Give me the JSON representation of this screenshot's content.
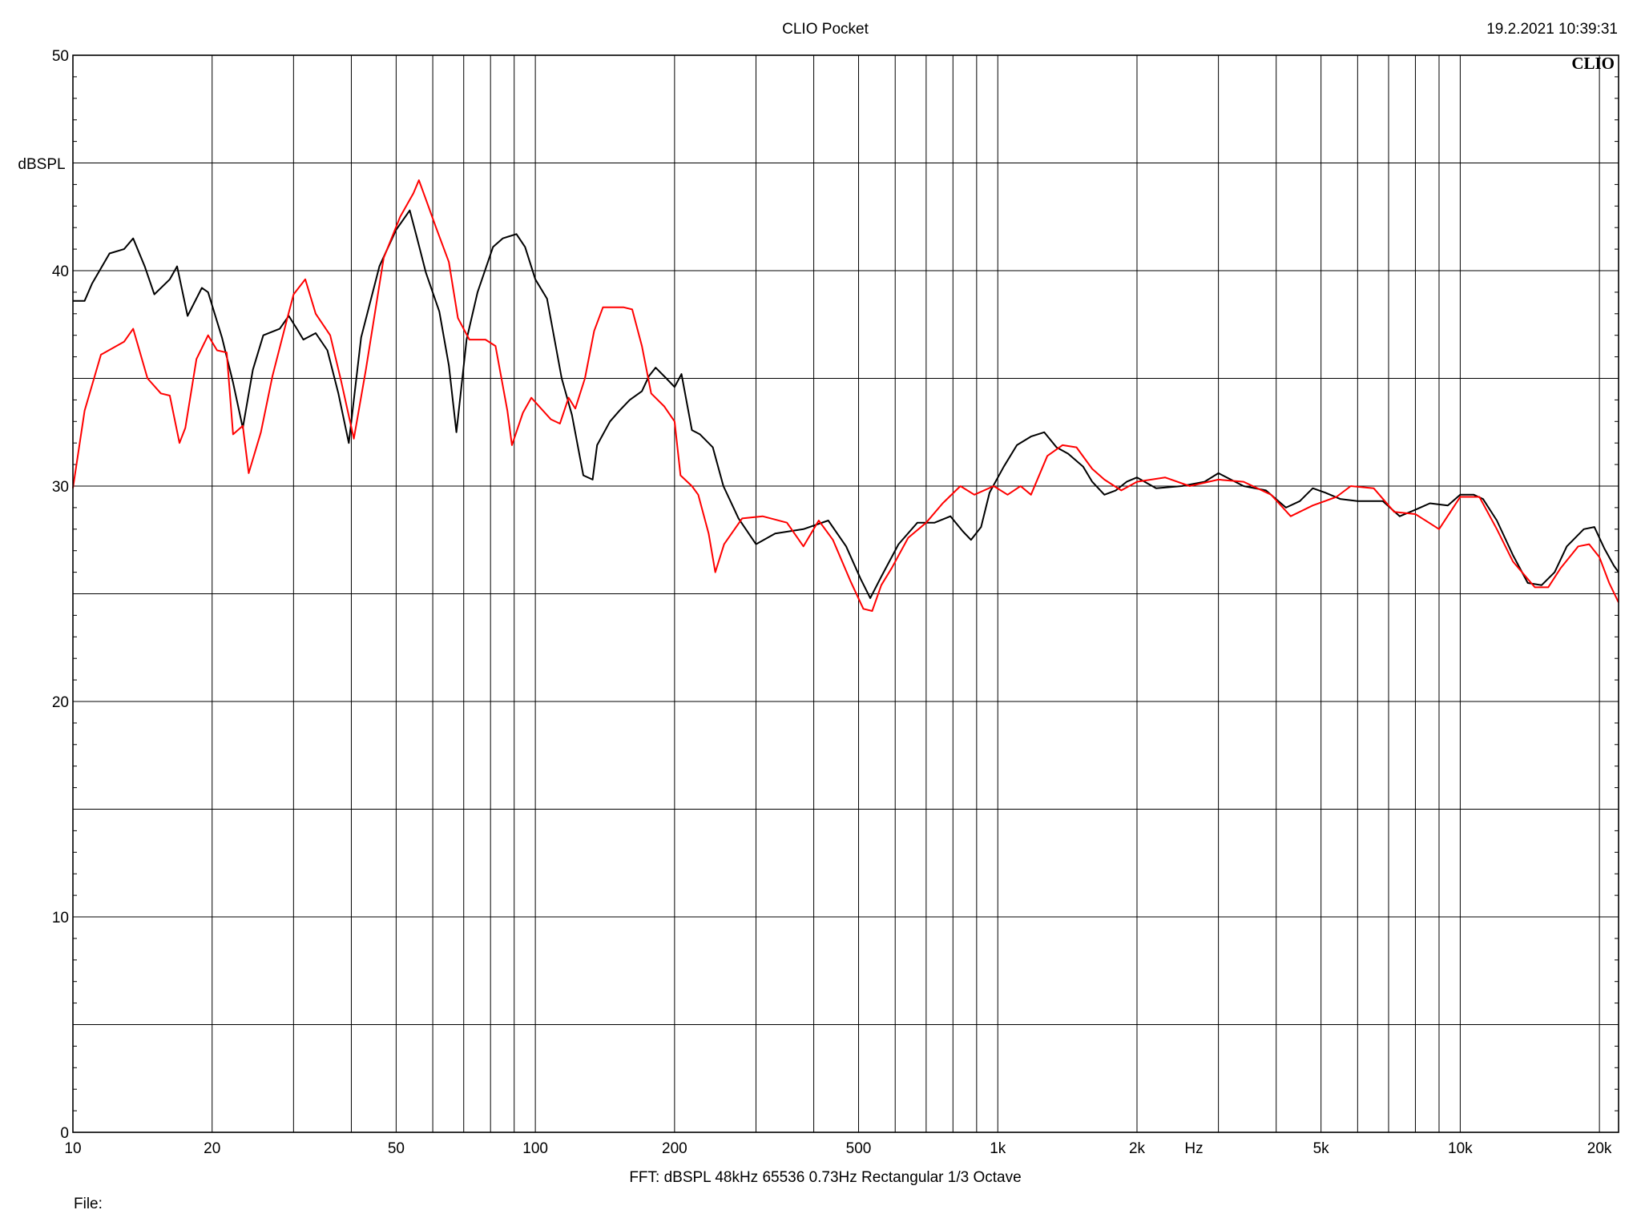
{
  "header": {
    "title": "CLIO Pocket",
    "timestamp": "19.2.2021 10:39:31",
    "logo": "CLIO"
  },
  "footer": {
    "settings": "FFT:  dBSPL  48kHz   65536  0.73Hz  Rectangular  1/3 Octave",
    "file_label": "File:"
  },
  "chart_data": {
    "type": "line",
    "title": "CLIO Pocket",
    "ylabel": "dBSPL",
    "xlabel": "Hz",
    "x_scale": "log",
    "xlim": [
      10,
      22000
    ],
    "ylim": [
      0,
      50
    ],
    "grid": true,
    "y_ticks": [
      {
        "value": 0,
        "label": "0"
      },
      {
        "value": 10,
        "label": "10"
      },
      {
        "value": 20,
        "label": "20"
      },
      {
        "value": 30,
        "label": "30"
      },
      {
        "value": 40,
        "label": "40"
      },
      {
        "value": 50,
        "label": "50"
      }
    ],
    "x_ticks": [
      {
        "value": 10,
        "label": "10"
      },
      {
        "value": 20,
        "label": "20"
      },
      {
        "value": 50,
        "label": "50"
      },
      {
        "value": 100,
        "label": "100"
      },
      {
        "value": 200,
        "label": "200"
      },
      {
        "value": 500,
        "label": "500"
      },
      {
        "value": 1000,
        "label": "1k"
      },
      {
        "value": 2000,
        "label": "2k"
      },
      {
        "value": 5000,
        "label": "5k"
      },
      {
        "value": 10000,
        "label": "10k"
      },
      {
        "value": 20000,
        "label": "20k"
      }
    ],
    "series": [
      {
        "color": "#000000",
        "points": [
          [
            10,
            38.6
          ],
          [
            10.6,
            38.6
          ],
          [
            11,
            39.4
          ],
          [
            12,
            40.8
          ],
          [
            12.9,
            41.0
          ],
          [
            13.5,
            41.5
          ],
          [
            14.3,
            40.2
          ],
          [
            15,
            38.9
          ],
          [
            16.2,
            39.6
          ],
          [
            16.8,
            40.2
          ],
          [
            17.7,
            37.9
          ],
          [
            19,
            39.2
          ],
          [
            19.6,
            39.0
          ],
          [
            21,
            36.9
          ],
          [
            22.2,
            34.8
          ],
          [
            23.3,
            32.7
          ],
          [
            24.5,
            35.4
          ],
          [
            25.8,
            37.0
          ],
          [
            28,
            37.3
          ],
          [
            29.3,
            37.9
          ],
          [
            30.5,
            37.3
          ],
          [
            31.5,
            36.8
          ],
          [
            33.5,
            37.1
          ],
          [
            35.5,
            36.3
          ],
          [
            37.5,
            34.3
          ],
          [
            39.5,
            32.0
          ],
          [
            42,
            36.9
          ],
          [
            46,
            40.2
          ],
          [
            50,
            41.9
          ],
          [
            53.5,
            42.8
          ],
          [
            55.5,
            41.5
          ],
          [
            58,
            39.9
          ],
          [
            62,
            38.1
          ],
          [
            65,
            35.6
          ],
          [
            67.5,
            32.5
          ],
          [
            71,
            36.8
          ],
          [
            75,
            39.0
          ],
          [
            81,
            41.1
          ],
          [
            85,
            41.5
          ],
          [
            91,
            41.7
          ],
          [
            95,
            41.1
          ],
          [
            100,
            39.6
          ],
          [
            106,
            38.7
          ],
          [
            114,
            35.0
          ],
          [
            120,
            33.3
          ],
          [
            127,
            30.5
          ],
          [
            133,
            30.3
          ],
          [
            136,
            31.9
          ],
          [
            145,
            33.0
          ],
          [
            152,
            33.5
          ],
          [
            160,
            34.0
          ],
          [
            170,
            34.4
          ],
          [
            176,
            35.1
          ],
          [
            182,
            35.5
          ],
          [
            192,
            35.0
          ],
          [
            200,
            34.6
          ],
          [
            207,
            35.2
          ],
          [
            218,
            32.6
          ],
          [
            227,
            32.4
          ],
          [
            242,
            31.8
          ],
          [
            255,
            30.0
          ],
          [
            275,
            28.5
          ],
          [
            300,
            27.3
          ],
          [
            330,
            27.8
          ],
          [
            380,
            28.0
          ],
          [
            430,
            28.4
          ],
          [
            470,
            27.2
          ],
          [
            505,
            25.7
          ],
          [
            530,
            24.8
          ],
          [
            560,
            25.8
          ],
          [
            610,
            27.3
          ],
          [
            670,
            28.3
          ],
          [
            730,
            28.3
          ],
          [
            790,
            28.6
          ],
          [
            840,
            27.9
          ],
          [
            875,
            27.5
          ],
          [
            920,
            28.1
          ],
          [
            960,
            29.7
          ],
          [
            1030,
            30.9
          ],
          [
            1100,
            31.9
          ],
          [
            1180,
            32.3
          ],
          [
            1260,
            32.5
          ],
          [
            1340,
            31.8
          ],
          [
            1420,
            31.5
          ],
          [
            1530,
            30.9
          ],
          [
            1600,
            30.2
          ],
          [
            1700,
            29.6
          ],
          [
            1800,
            29.8
          ],
          [
            1900,
            30.2
          ],
          [
            2000,
            30.4
          ],
          [
            2200,
            29.9
          ],
          [
            2500,
            30.0
          ],
          [
            2800,
            30.2
          ],
          [
            3000,
            30.6
          ],
          [
            3400,
            30.0
          ],
          [
            3800,
            29.8
          ],
          [
            4200,
            29.0
          ],
          [
            4500,
            29.3
          ],
          [
            4800,
            29.9
          ],
          [
            5100,
            29.7
          ],
          [
            5500,
            29.4
          ],
          [
            6000,
            29.3
          ],
          [
            6800,
            29.3
          ],
          [
            7400,
            28.6
          ],
          [
            8000,
            28.9
          ],
          [
            8600,
            29.2
          ],
          [
            9400,
            29.1
          ],
          [
            10000,
            29.6
          ],
          [
            10700,
            29.6
          ],
          [
            11200,
            29.4
          ],
          [
            12000,
            28.4
          ],
          [
            13000,
            26.8
          ],
          [
            14000,
            25.5
          ],
          [
            15000,
            25.4
          ],
          [
            16000,
            26.0
          ],
          [
            17000,
            27.2
          ],
          [
            18500,
            28.0
          ],
          [
            19500,
            28.1
          ],
          [
            20500,
            27.1
          ],
          [
            21500,
            26.3
          ],
          [
            22000,
            26.0
          ]
        ]
      },
      {
        "color": "#ff0000",
        "points": [
          [
            10,
            29.9
          ],
          [
            10.6,
            33.5
          ],
          [
            11.5,
            36.1
          ],
          [
            12.9,
            36.7
          ],
          [
            13.5,
            37.3
          ],
          [
            14.5,
            35.0
          ],
          [
            15.5,
            34.3
          ],
          [
            16.2,
            34.2
          ],
          [
            17,
            32.0
          ],
          [
            17.5,
            32.7
          ],
          [
            18.5,
            35.9
          ],
          [
            19.6,
            37.0
          ],
          [
            20.5,
            36.3
          ],
          [
            21.5,
            36.2
          ],
          [
            22.2,
            32.4
          ],
          [
            23.3,
            32.8
          ],
          [
            24,
            30.6
          ],
          [
            25.5,
            32.5
          ],
          [
            27,
            35.1
          ],
          [
            29,
            37.7
          ],
          [
            30,
            38.9
          ],
          [
            31.8,
            39.6
          ],
          [
            33.5,
            38.0
          ],
          [
            36,
            37.0
          ],
          [
            38,
            34.9
          ],
          [
            40.5,
            32.2
          ],
          [
            43,
            35.4
          ],
          [
            47,
            40.6
          ],
          [
            51,
            42.5
          ],
          [
            54.5,
            43.6
          ],
          [
            56,
            44.2
          ],
          [
            58,
            43.3
          ],
          [
            61,
            42.0
          ],
          [
            65,
            40.4
          ],
          [
            68,
            37.8
          ],
          [
            72,
            36.8
          ],
          [
            78,
            36.8
          ],
          [
            82,
            36.5
          ],
          [
            87,
            33.5
          ],
          [
            89,
            31.9
          ],
          [
            94,
            33.4
          ],
          [
            98,
            34.1
          ],
          [
            108,
            33.1
          ],
          [
            113,
            32.9
          ],
          [
            118,
            34.1
          ],
          [
            122,
            33.6
          ],
          [
            128,
            35.0
          ],
          [
            134,
            37.2
          ],
          [
            140,
            38.3
          ],
          [
            155,
            38.3
          ],
          [
            162,
            38.2
          ],
          [
            170,
            36.5
          ],
          [
            178,
            34.3
          ],
          [
            190,
            33.7
          ],
          [
            200,
            33.0
          ],
          [
            206,
            30.5
          ],
          [
            218,
            30.0
          ],
          [
            225,
            29.6
          ],
          [
            237,
            27.8
          ],
          [
            245,
            26.0
          ],
          [
            256,
            27.3
          ],
          [
            280,
            28.5
          ],
          [
            310,
            28.6
          ],
          [
            350,
            28.3
          ],
          [
            380,
            27.2
          ],
          [
            410,
            28.4
          ],
          [
            440,
            27.5
          ],
          [
            480,
            25.6
          ],
          [
            512,
            24.3
          ],
          [
            535,
            24.2
          ],
          [
            560,
            25.4
          ],
          [
            590,
            26.2
          ],
          [
            640,
            27.6
          ],
          [
            700,
            28.3
          ],
          [
            760,
            29.2
          ],
          [
            830,
            30.0
          ],
          [
            890,
            29.6
          ],
          [
            980,
            30.0
          ],
          [
            1050,
            29.6
          ],
          [
            1120,
            30.0
          ],
          [
            1180,
            29.6
          ],
          [
            1280,
            31.4
          ],
          [
            1380,
            31.9
          ],
          [
            1480,
            31.8
          ],
          [
            1600,
            30.8
          ],
          [
            1700,
            30.3
          ],
          [
            1850,
            29.8
          ],
          [
            2000,
            30.2
          ],
          [
            2300,
            30.4
          ],
          [
            2600,
            30.0
          ],
          [
            3000,
            30.3
          ],
          [
            3400,
            30.2
          ],
          [
            3900,
            29.6
          ],
          [
            4300,
            28.6
          ],
          [
            4800,
            29.1
          ],
          [
            5400,
            29.5
          ],
          [
            5800,
            30.0
          ],
          [
            6500,
            29.9
          ],
          [
            7200,
            28.8
          ],
          [
            8000,
            28.7
          ],
          [
            9000,
            28.0
          ],
          [
            10000,
            29.5
          ],
          [
            11000,
            29.5
          ],
          [
            12000,
            28.0
          ],
          [
            13000,
            26.5
          ],
          [
            14500,
            25.3
          ],
          [
            15500,
            25.3
          ],
          [
            16500,
            26.2
          ],
          [
            18000,
            27.2
          ],
          [
            19000,
            27.3
          ],
          [
            20000,
            26.7
          ],
          [
            21000,
            25.5
          ],
          [
            22000,
            24.6
          ]
        ]
      }
    ]
  }
}
